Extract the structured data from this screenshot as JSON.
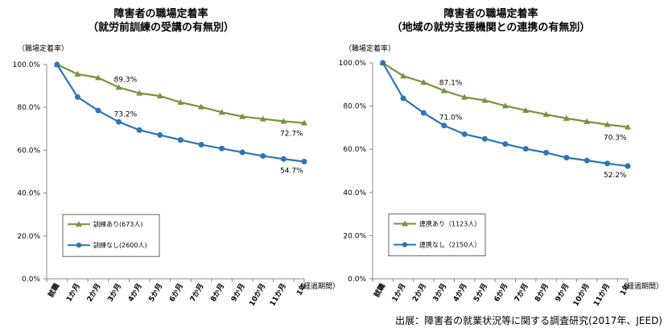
{
  "source": "出展：障害者の就業状況等に関する調査研究(2017年、JEED)",
  "charts": [
    {
      "title_line1": "障害者の職場定着率",
      "title_line2": "（就労前訓練の受講の有無別）",
      "ylabel": "（職場定着率）",
      "xlabel": "（経過期間）"
    },
    {
      "title_line1": "障害者の職場定着率",
      "title_line2": "（地域の就労支援機関との連携の有無別）",
      "ylabel": "（職場定着率）",
      "xlabel": "（経過期間）"
    }
  ],
  "chart_data": [
    {
      "type": "line",
      "categories": [
        "就職",
        "1か月",
        "2か月",
        "3か月",
        "4か月",
        "5か月",
        "6か月",
        "7か月",
        "8か月",
        "9か月",
        "10か月",
        "11か月",
        "1年"
      ],
      "ylim": [
        0,
        100
      ],
      "yticks": [
        "0.0%",
        "20.0%",
        "40.0%",
        "60.0%",
        "80.0%",
        "100.0%"
      ],
      "grid": false,
      "legend": "lower-left",
      "series": [
        {
          "name": "訓練あり(673人)",
          "color": "#77933c",
          "marker": "triangle",
          "values": [
            100,
            95.5,
            93.8,
            89.3,
            86.6,
            85.3,
            82.3,
            80.2,
            77.7,
            75.7,
            74.6,
            73.5,
            72.7
          ],
          "labels": {
            "3": "89.3%",
            "12": "72.7%"
          }
        },
        {
          "name": "訓練なし(2600人)",
          "color": "#2e75b6",
          "marker": "circle",
          "values": [
            100,
            84.8,
            78.5,
            73.2,
            69.4,
            67.1,
            64.8,
            62.6,
            60.8,
            59.0,
            57.3,
            55.9,
            54.7
          ],
          "labels": {
            "3": "73.2%",
            "12": "54.7%"
          }
        }
      ]
    },
    {
      "type": "line",
      "categories": [
        "就職",
        "1か月",
        "2か月",
        "3か月",
        "4か月",
        "5か月",
        "6か月",
        "7か月",
        "8か月",
        "9か月",
        "10か月",
        "11か月",
        "1年"
      ],
      "ylim": [
        0,
        100
      ],
      "yticks": [
        "0.0%",
        "20.0%",
        "40.0%",
        "60.0%",
        "80.0%",
        "100.0%"
      ],
      "grid": false,
      "legend": "lower-left",
      "series": [
        {
          "name": "連携あり（1123人）",
          "color": "#77933c",
          "marker": "triangle",
          "values": [
            100,
            93.9,
            91.0,
            87.1,
            84.1,
            82.6,
            80.1,
            78.0,
            76.1,
            74.3,
            72.8,
            71.4,
            70.3
          ],
          "labels": {
            "3": "87.1%",
            "12": "70.3%"
          }
        },
        {
          "name": "連携なし（2150人）",
          "color": "#2e75b6",
          "marker": "circle",
          "values": [
            100,
            83.6,
            76.8,
            71.0,
            67.0,
            64.8,
            62.4,
            60.2,
            58.4,
            56.1,
            54.8,
            53.4,
            52.2
          ],
          "labels": {
            "3": "71.0%",
            "12": "52.2%"
          }
        }
      ]
    }
  ]
}
